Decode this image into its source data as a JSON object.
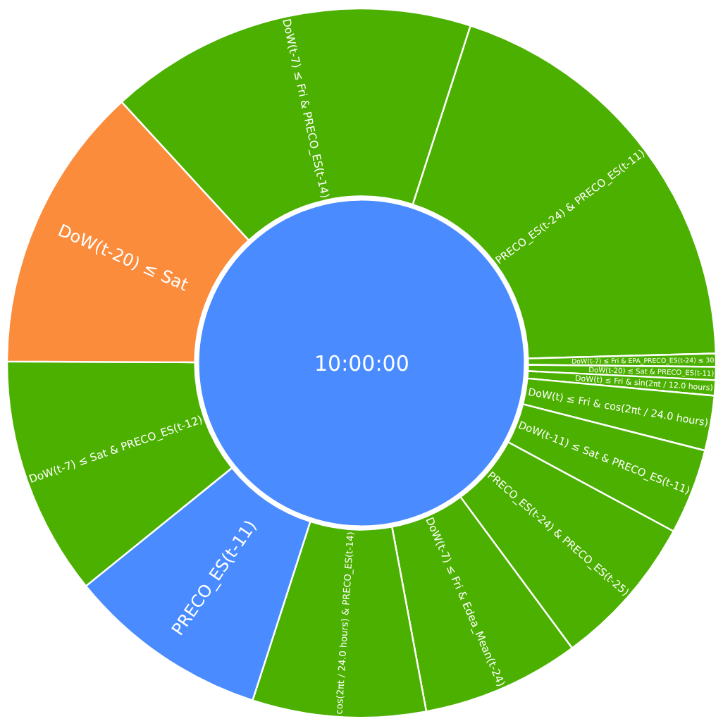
{
  "chart_data": {
    "type": "donut",
    "title": "10:00:00",
    "color": "#4a8cff",
    "categories": [
      "PRECO_ES(t-24) & PRECO_ES(t-11)",
      "DoW(t-7) ≤ Fri & EPA_PRECO_ES(t-24) ≤ 30",
      "DoW(t-20) ≤ Sat & PRECO_ES(t-11)",
      "DoW(t) ≤ Fri & sin(2πt / 12.0 hours)",
      "DoW(t) ≤ Fri & cos(2πt / 24.0 hours)",
      "DoW(t-11) ≤ Sat & PRECO_ES(t-11)",
      "PRECO_ES(t-24) & PRECO_ES(t-25)",
      "DoW(t-7) ≤ Fri & Edea_Mean(t-24)",
      "cos(2πt / 24.0 hours) & PRECO_ES(t-14)",
      "PRECO_ES(t-11)",
      "DoW(t-7) ≤ Sat & PRECO_ES(t-12)",
      "DoW(t-20) ≤ Sat",
      "DoW(t-7) ≤ Fri & PRECO_ES(t-14)"
    ],
    "values": [
      19.6,
      0.6,
      0.6,
      0.7,
      2.5,
      3.9,
      7.0,
      7.2,
      7.9,
      9.2,
      10.9,
      13.1,
      16.8
    ],
    "colors": [
      "#4cb000",
      "#4cb000",
      "#4cb000",
      "#4cb000",
      "#4cb000",
      "#4cb000",
      "#4cb000",
      "#4cb000",
      "#4cb000",
      "#4a8cff",
      "#4cb000",
      "#fa8c3c",
      "#4cb000"
    ]
  }
}
